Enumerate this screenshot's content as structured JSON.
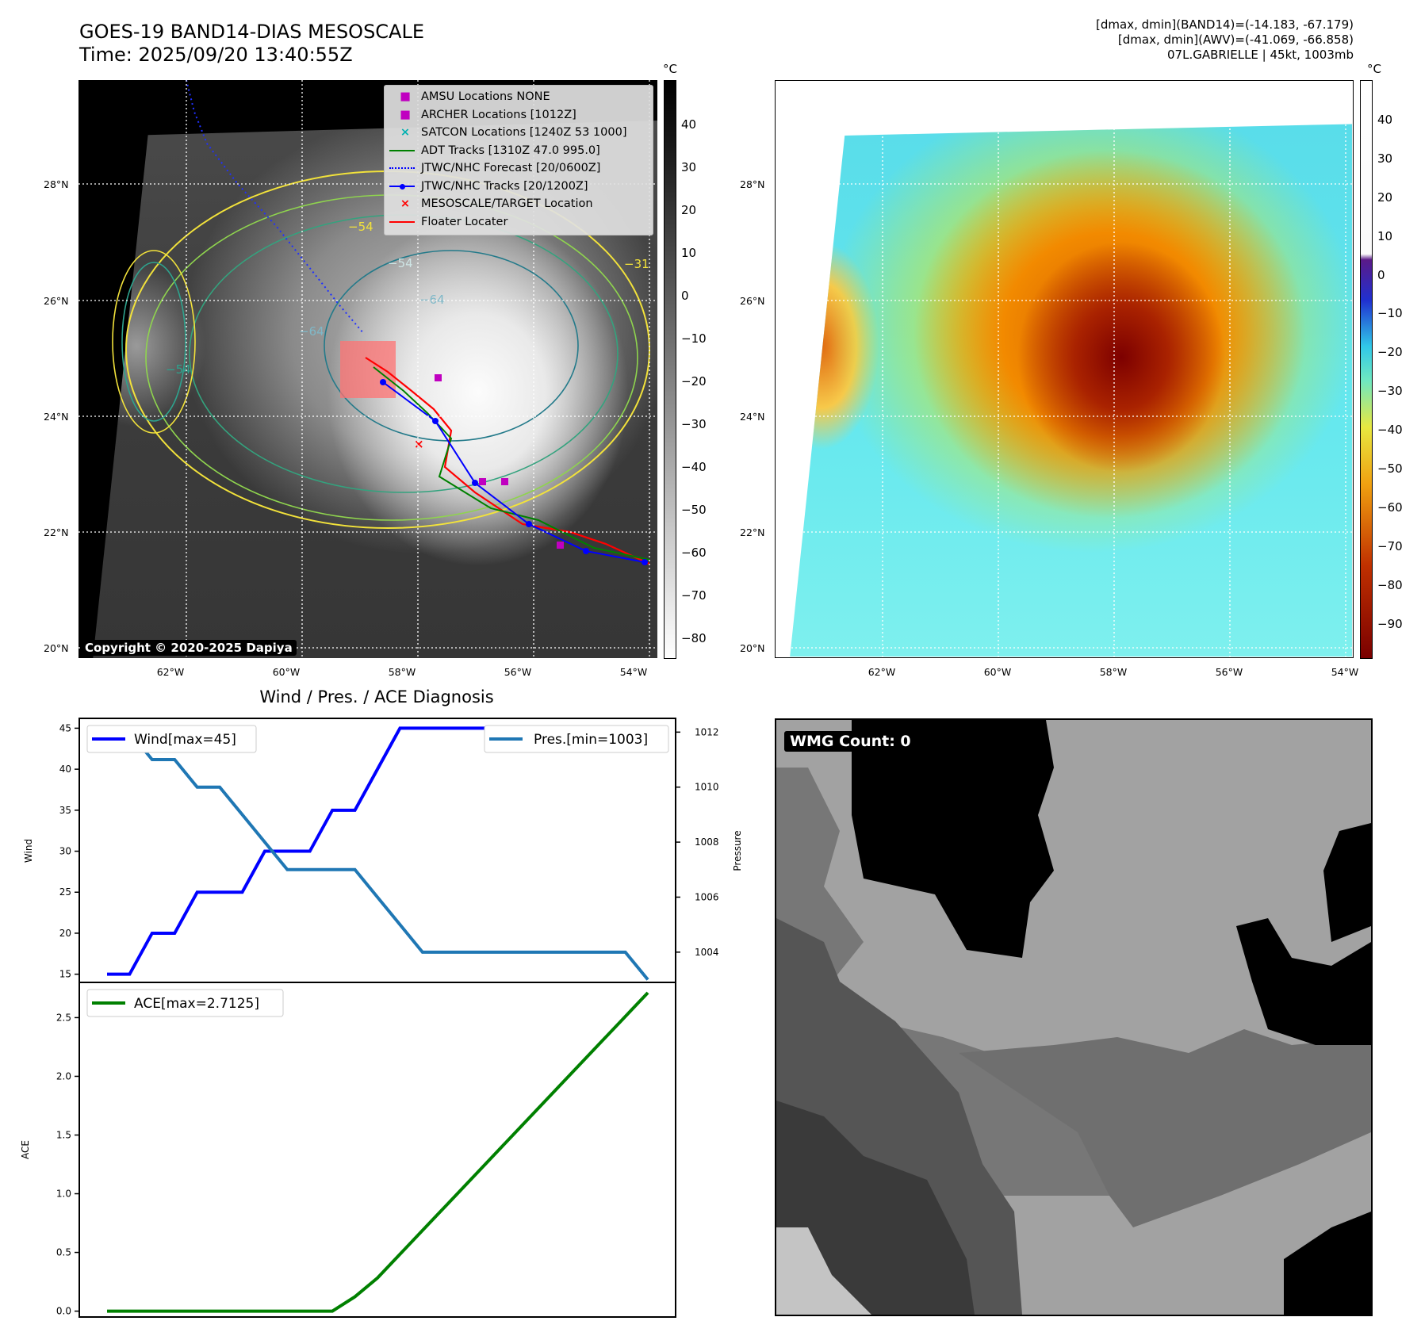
{
  "header": {
    "title_line1": "GOES-19 BAND14-DIAS MESOSCALE",
    "title_line2": "Time: 2025/09/20 13:40:55Z",
    "info_line1": "[dmax, dmin](BAND14)=(-14.183, -67.179)",
    "info_line2": "[dmax, dmin](AWV)=(-41.069, -66.858)",
    "info_line3": "07L.GABRIELLE | 45kt, 1003mb"
  },
  "map_axes": {
    "lon_labels": [
      "62°W",
      "60°W",
      "58°W",
      "56°W",
      "54°W"
    ],
    "lat_labels": [
      "28°N",
      "26°N",
      "24°N",
      "22°N",
      "20°N"
    ],
    "lon_values": [
      -62,
      -60,
      -58,
      -56,
      -54
    ],
    "lat_values": [
      28,
      26,
      24,
      22,
      20
    ]
  },
  "ir_panel": {
    "colorbar_unit": "°C",
    "colorbar_ticks": [
      "40",
      "30",
      "20",
      "10",
      "0",
      "−10",
      "−20",
      "−30",
      "−40",
      "−50",
      "−60",
      "−70",
      "−80"
    ],
    "contour_labels": [
      "−54",
      "−64",
      "−31",
      "−54",
      "−64",
      "−54"
    ],
    "copyright": "Copyright © 2020-2025 Dapiya",
    "legend": [
      {
        "label": "AMSU Locations NONE",
        "marker": "square",
        "color": "#c000c0"
      },
      {
        "label": "ARCHER Locations [1012Z]",
        "marker": "square",
        "color": "#c000c0"
      },
      {
        "label": "SATCON Locations [1240Z 53 1000]",
        "marker": "x",
        "color": "#00b0b0"
      },
      {
        "label": "ADT Tracks [1310Z 47.0 995.0]",
        "marker": "line",
        "color": "#008000"
      },
      {
        "label": "JTWC/NHC Forecast [20/0600Z]",
        "marker": "dotted",
        "color": "#0000ff"
      },
      {
        "label": "JTWC/NHC Tracks [20/1200Z]",
        "marker": "line-dot",
        "color": "#0000ff"
      },
      {
        "label": "MESOSCALE/TARGET Location",
        "marker": "x",
        "color": "#ff0000"
      },
      {
        "label": "Floater Locater",
        "marker": "line",
        "color": "#ff0000"
      }
    ]
  },
  "awv_panel": {
    "colorbar_unit": "°C",
    "colorbar_ticks": [
      "40",
      "30",
      "20",
      "10",
      "0",
      "−10",
      "−20",
      "−30",
      "−40",
      "−50",
      "−60",
      "−70",
      "−80",
      "−90"
    ]
  },
  "wmg_panel": {
    "label": "WMG Count: 0"
  },
  "colors": {
    "wind": "#0000ff",
    "pressure": "#1f77b4",
    "ace": "#008000"
  },
  "chart_data": [
    {
      "type": "line",
      "title": "Wind / Pres. / ACE Diagnosis",
      "ylabel": "Wind",
      "ylabel_right": "Pressure",
      "ylim": [
        14,
        46.2
      ],
      "ylim_right": [
        1002.9,
        1012.5
      ],
      "y_ticks": [
        15,
        20,
        25,
        30,
        35,
        40,
        45
      ],
      "y_ticks_right": [
        1004,
        1006,
        1008,
        1010,
        1012
      ],
      "x": [
        0,
        1,
        2,
        3,
        4,
        5,
        6,
        7,
        8,
        9,
        10,
        11,
        12,
        13,
        14,
        15,
        16,
        17,
        18,
        19,
        20,
        21,
        22,
        23,
        24
      ],
      "series": [
        {
          "name": "Wind[max=45]",
          "axis": "left",
          "values": [
            15,
            15,
            20,
            20,
            25,
            25,
            25,
            30,
            30,
            30,
            35,
            35,
            40,
            45,
            45,
            45,
            45,
            45,
            45,
            45,
            45,
            45,
            45,
            45,
            45
          ]
        },
        {
          "name": "Pres.[min=1003]",
          "axis": "right",
          "values": [
            1012,
            1012,
            1011,
            1011,
            1010,
            1010,
            1009,
            1008,
            1007,
            1007,
            1007,
            1007,
            1006,
            1005,
            1004,
            1004,
            1004,
            1004,
            1004,
            1004,
            1004,
            1004,
            1004,
            1004,
            1003
          ]
        }
      ]
    },
    {
      "type": "line",
      "ylabel": "ACE",
      "ylim": [
        -0.05,
        2.8
      ],
      "y_ticks": [
        0.0,
        0.5,
        1.0,
        1.5,
        2.0,
        2.5
      ],
      "x": [
        0,
        1,
        2,
        3,
        4,
        5,
        6,
        7,
        8,
        9,
        10,
        11,
        12,
        13,
        14,
        15,
        16,
        17,
        18,
        19,
        20,
        21,
        22,
        23,
        24
      ],
      "series": [
        {
          "name": "ACE[max=2.7125]",
          "values": [
            0,
            0,
            0,
            0,
            0,
            0,
            0,
            0,
            0,
            0,
            0,
            0.1225,
            0.2825,
            0.485,
            0.6875,
            0.89,
            1.0925,
            1.295,
            1.4975,
            1.7,
            1.9025,
            2.105,
            2.3075,
            2.51,
            2.7125
          ]
        }
      ]
    }
  ]
}
